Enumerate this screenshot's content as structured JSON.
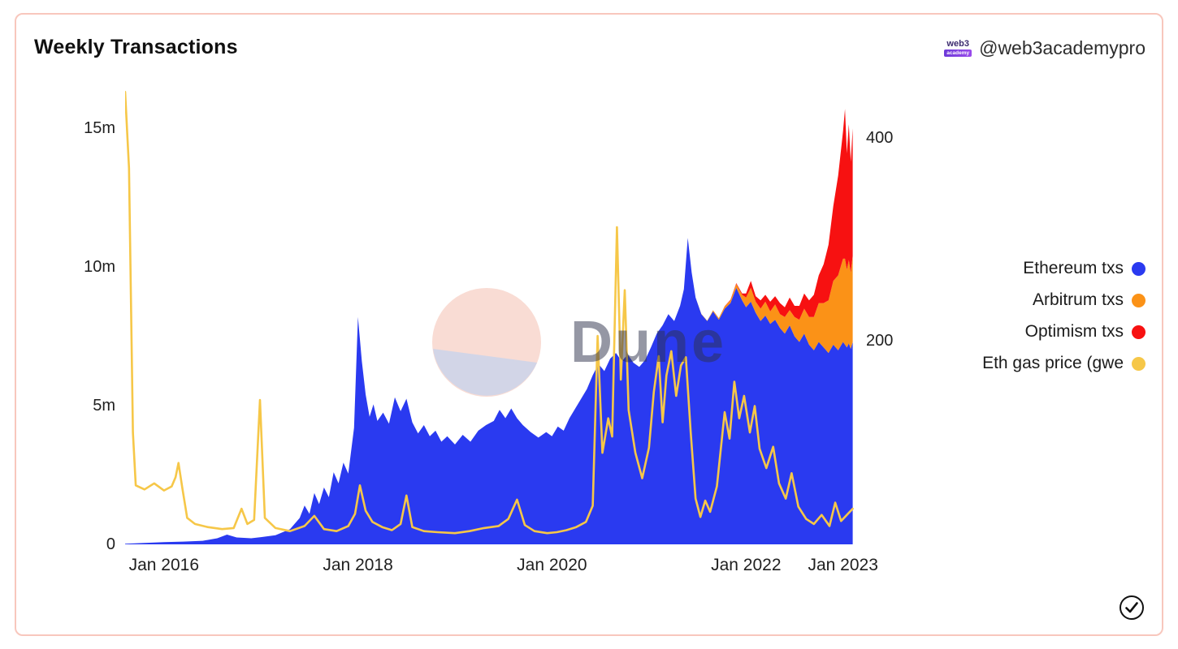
{
  "header": {
    "title": "Weekly Transactions",
    "handle": "@web3academypro",
    "logo_line1": "web3",
    "logo_line2": "academy"
  },
  "watermark": {
    "text": "Dune"
  },
  "legend": {
    "items": [
      {
        "label": "Ethereum txs",
        "color": "#2a3af0"
      },
      {
        "label": "Arbitrum txs",
        "color": "#fb9217"
      },
      {
        "label": "Optimism txs",
        "color": "#f71111"
      },
      {
        "label": "Eth gas price (gwe",
        "color": "#f6c748"
      }
    ]
  },
  "footer": {
    "check_icon": "checkmark"
  },
  "chart_data": {
    "type": "combo_stacked_area_line",
    "title": "Weekly Transactions",
    "grid": "off",
    "legend_position": "right",
    "axes": {
      "left": {
        "max": 16.5,
        "unit": "millions of transactions",
        "ticks": [
          {
            "value": 15,
            "label": "15m"
          },
          {
            "value": 10,
            "label": "10m"
          },
          {
            "value": 5,
            "label": "5m"
          },
          {
            "value": 0,
            "label": "0"
          }
        ]
      },
      "right": {
        "max": 450,
        "unit": "gwei",
        "ticks": [
          {
            "value": 400,
            "label": "400"
          },
          {
            "value": 200,
            "label": "200"
          }
        ]
      },
      "x": {
        "min": 2015.6,
        "max": 2023.12,
        "ticks": [
          {
            "value": 2016.0,
            "label": "Jan 2016"
          },
          {
            "value": 2018.0,
            "label": "Jan 2018"
          },
          {
            "value": 2020.0,
            "label": "Jan 2020"
          },
          {
            "value": 2022.0,
            "label": "Jan 2022"
          },
          {
            "value": 2023.0,
            "label": "Jan 2023"
          }
        ]
      }
    },
    "stack_columns": [
      "year",
      "ethereum_txs_m",
      "arbitrum_txs_m",
      "optimism_txs_m"
    ],
    "stack_series": [
      {
        "name": "Ethereum txs",
        "color": "#2a3af0",
        "axis": "left",
        "data_name": "ethereum-area"
      },
      {
        "name": "Arbitrum txs",
        "color": "#fb9217",
        "axis": "left",
        "data_name": "arbitrum-area"
      },
      {
        "name": "Optimism txs",
        "color": "#f71111",
        "axis": "left",
        "data_name": "optimism-area"
      }
    ],
    "stack_rows": [
      [
        2015.6,
        0.02,
        0,
        0
      ],
      [
        2015.8,
        0.05,
        0,
        0
      ],
      [
        2016.0,
        0.08,
        0,
        0
      ],
      [
        2016.2,
        0.1,
        0,
        0
      ],
      [
        2016.4,
        0.13,
        0,
        0
      ],
      [
        2016.55,
        0.22,
        0,
        0
      ],
      [
        2016.65,
        0.35,
        0,
        0
      ],
      [
        2016.75,
        0.25,
        0,
        0
      ],
      [
        2016.9,
        0.22,
        0,
        0
      ],
      [
        2017.0,
        0.26,
        0,
        0
      ],
      [
        2017.15,
        0.33,
        0,
        0
      ],
      [
        2017.3,
        0.55,
        0,
        0
      ],
      [
        2017.4,
        0.95,
        0,
        0
      ],
      [
        2017.45,
        1.4,
        0,
        0
      ],
      [
        2017.5,
        1.1,
        0,
        0
      ],
      [
        2017.55,
        1.85,
        0,
        0
      ],
      [
        2017.6,
        1.45,
        0,
        0
      ],
      [
        2017.65,
        2.05,
        0,
        0
      ],
      [
        2017.7,
        1.7,
        0,
        0
      ],
      [
        2017.75,
        2.6,
        0,
        0
      ],
      [
        2017.8,
        2.2,
        0,
        0
      ],
      [
        2017.85,
        2.95,
        0,
        0
      ],
      [
        2017.9,
        2.55,
        0,
        0
      ],
      [
        2017.96,
        4.2,
        0,
        0
      ],
      [
        2018.0,
        8.2,
        0,
        0
      ],
      [
        2018.04,
        6.6,
        0,
        0
      ],
      [
        2018.08,
        5.4,
        0,
        0
      ],
      [
        2018.12,
        4.6,
        0,
        0
      ],
      [
        2018.16,
        5.05,
        0,
        0
      ],
      [
        2018.2,
        4.45,
        0,
        0
      ],
      [
        2018.26,
        4.75,
        0,
        0
      ],
      [
        2018.32,
        4.35,
        0,
        0
      ],
      [
        2018.38,
        5.3,
        0,
        0
      ],
      [
        2018.44,
        4.8,
        0,
        0
      ],
      [
        2018.5,
        5.25,
        0,
        0
      ],
      [
        2018.56,
        4.4,
        0,
        0
      ],
      [
        2018.62,
        4.0,
        0,
        0
      ],
      [
        2018.68,
        4.3,
        0,
        0
      ],
      [
        2018.74,
        3.9,
        0,
        0
      ],
      [
        2018.8,
        4.1,
        0,
        0
      ],
      [
        2018.86,
        3.7,
        0,
        0
      ],
      [
        2018.92,
        3.9,
        0,
        0
      ],
      [
        2019.0,
        3.6,
        0,
        0
      ],
      [
        2019.08,
        3.95,
        0,
        0
      ],
      [
        2019.16,
        3.7,
        0,
        0
      ],
      [
        2019.24,
        4.1,
        0,
        0
      ],
      [
        2019.32,
        4.3,
        0,
        0
      ],
      [
        2019.4,
        4.45,
        0,
        0
      ],
      [
        2019.46,
        4.85,
        0,
        0
      ],
      [
        2019.52,
        4.55,
        0,
        0
      ],
      [
        2019.58,
        4.9,
        0,
        0
      ],
      [
        2019.64,
        4.55,
        0,
        0
      ],
      [
        2019.7,
        4.3,
        0,
        0
      ],
      [
        2019.78,
        4.05,
        0,
        0
      ],
      [
        2019.86,
        3.85,
        0,
        0
      ],
      [
        2019.94,
        4.05,
        0,
        0
      ],
      [
        2020.0,
        3.9,
        0,
        0
      ],
      [
        2020.06,
        4.25,
        0,
        0
      ],
      [
        2020.12,
        4.1,
        0,
        0
      ],
      [
        2020.18,
        4.55,
        0,
        0
      ],
      [
        2020.24,
        4.9,
        0,
        0
      ],
      [
        2020.3,
        5.25,
        0,
        0
      ],
      [
        2020.36,
        5.6,
        0,
        0
      ],
      [
        2020.42,
        6.1,
        0,
        0
      ],
      [
        2020.48,
        6.5,
        0,
        0
      ],
      [
        2020.54,
        6.25,
        0,
        0
      ],
      [
        2020.6,
        6.7,
        0,
        0
      ],
      [
        2020.66,
        6.9,
        0,
        0
      ],
      [
        2020.72,
        6.6,
        0,
        0
      ],
      [
        2020.78,
        6.85,
        0,
        0
      ],
      [
        2020.84,
        6.55,
        0,
        0
      ],
      [
        2020.9,
        6.4,
        0,
        0
      ],
      [
        2020.96,
        6.65,
        0,
        0
      ],
      [
        2021.02,
        7.1,
        0,
        0
      ],
      [
        2021.08,
        7.6,
        0,
        0
      ],
      [
        2021.14,
        7.9,
        0,
        0
      ],
      [
        2021.2,
        8.3,
        0,
        0
      ],
      [
        2021.26,
        8.05,
        0,
        0
      ],
      [
        2021.32,
        8.6,
        0,
        0
      ],
      [
        2021.36,
        9.2,
        0,
        0
      ],
      [
        2021.4,
        11.05,
        0,
        0
      ],
      [
        2021.44,
        9.8,
        0,
        0
      ],
      [
        2021.48,
        8.9,
        0,
        0
      ],
      [
        2021.54,
        8.3,
        0.01,
        0
      ],
      [
        2021.6,
        8.05,
        0.02,
        0
      ],
      [
        2021.66,
        8.4,
        0.04,
        0
      ],
      [
        2021.72,
        8.1,
        0.06,
        0
      ],
      [
        2021.78,
        8.5,
        0.08,
        0.01
      ],
      [
        2021.84,
        8.7,
        0.1,
        0.02
      ],
      [
        2021.9,
        9.25,
        0.14,
        0.03
      ],
      [
        2021.96,
        8.8,
        0.2,
        0.05
      ],
      [
        2022.0,
        8.55,
        0.35,
        0.15
      ],
      [
        2022.05,
        8.75,
        0.5,
        0.25
      ],
      [
        2022.1,
        8.35,
        0.4,
        0.2
      ],
      [
        2022.15,
        8.05,
        0.45,
        0.3
      ],
      [
        2022.2,
        8.25,
        0.5,
        0.25
      ],
      [
        2022.25,
        7.95,
        0.45,
        0.35
      ],
      [
        2022.3,
        8.1,
        0.55,
        0.3
      ],
      [
        2022.35,
        7.8,
        0.5,
        0.4
      ],
      [
        2022.4,
        7.6,
        0.6,
        0.35
      ],
      [
        2022.45,
        7.9,
        0.55,
        0.45
      ],
      [
        2022.5,
        7.5,
        0.7,
        0.4
      ],
      [
        2022.55,
        7.3,
        0.8,
        0.5
      ],
      [
        2022.6,
        7.6,
        0.9,
        0.55
      ],
      [
        2022.65,
        7.2,
        1.0,
        0.6
      ],
      [
        2022.7,
        7.0,
        1.2,
        0.8
      ],
      [
        2022.75,
        7.3,
        1.4,
        1.0
      ],
      [
        2022.8,
        7.1,
        1.6,
        1.4
      ],
      [
        2022.85,
        6.9,
        1.9,
        2.0
      ],
      [
        2022.9,
        7.2,
        2.3,
        2.7
      ],
      [
        2022.95,
        7.0,
        2.7,
        3.6
      ],
      [
        2023.0,
        7.3,
        3.0,
        4.6
      ],
      [
        2023.02,
        7.2,
        3.1,
        5.4
      ],
      [
        2023.04,
        7.1,
        2.8,
        4.2
      ],
      [
        2023.06,
        7.25,
        3.0,
        4.9
      ],
      [
        2023.08,
        7.05,
        2.75,
        4.0
      ],
      [
        2023.1,
        7.3,
        3.1,
        4.6
      ]
    ],
    "gas_line": {
      "name": "Eth gas price (gwe",
      "color": "#f6c748",
      "axis": "right",
      "columns": [
        "year",
        "gwei"
      ],
      "rows": [
        [
          2015.6,
          445
        ],
        [
          2015.64,
          370
        ],
        [
          2015.68,
          110
        ],
        [
          2015.71,
          58
        ],
        [
          2015.8,
          54
        ],
        [
          2015.9,
          60
        ],
        [
          2016.0,
          53
        ],
        [
          2016.08,
          57
        ],
        [
          2016.12,
          66
        ],
        [
          2016.15,
          80
        ],
        [
          2016.19,
          55
        ],
        [
          2016.24,
          26
        ],
        [
          2016.32,
          20
        ],
        [
          2016.45,
          17
        ],
        [
          2016.6,
          15
        ],
        [
          2016.72,
          16
        ],
        [
          2016.8,
          35
        ],
        [
          2016.86,
          20
        ],
        [
          2016.93,
          24
        ],
        [
          2016.99,
          142
        ],
        [
          2017.04,
          26
        ],
        [
          2017.15,
          16
        ],
        [
          2017.3,
          13
        ],
        [
          2017.45,
          18
        ],
        [
          2017.55,
          28
        ],
        [
          2017.65,
          15
        ],
        [
          2017.78,
          13
        ],
        [
          2017.9,
          18
        ],
        [
          2017.97,
          30
        ],
        [
          2018.02,
          58
        ],
        [
          2018.08,
          33
        ],
        [
          2018.15,
          22
        ],
        [
          2018.25,
          17
        ],
        [
          2018.35,
          14
        ],
        [
          2018.44,
          20
        ],
        [
          2018.5,
          48
        ],
        [
          2018.56,
          17
        ],
        [
          2018.68,
          13
        ],
        [
          2018.82,
          12
        ],
        [
          2019.0,
          11
        ],
        [
          2019.15,
          13
        ],
        [
          2019.3,
          16
        ],
        [
          2019.45,
          18
        ],
        [
          2019.55,
          25
        ],
        [
          2019.64,
          44
        ],
        [
          2019.72,
          19
        ],
        [
          2019.82,
          13
        ],
        [
          2019.95,
          11
        ],
        [
          2020.05,
          12
        ],
        [
          2020.15,
          14
        ],
        [
          2020.25,
          17
        ],
        [
          2020.35,
          22
        ],
        [
          2020.42,
          38
        ],
        [
          2020.47,
          205
        ],
        [
          2020.52,
          90
        ],
        [
          2020.58,
          124
        ],
        [
          2020.62,
          106
        ],
        [
          2020.67,
          312
        ],
        [
          2020.71,
          162
        ],
        [
          2020.75,
          250
        ],
        [
          2020.79,
          132
        ],
        [
          2020.86,
          90
        ],
        [
          2020.93,
          65
        ],
        [
          2021.0,
          95
        ],
        [
          2021.05,
          150
        ],
        [
          2021.1,
          185
        ],
        [
          2021.14,
          120
        ],
        [
          2021.18,
          166
        ],
        [
          2021.23,
          190
        ],
        [
          2021.28,
          146
        ],
        [
          2021.33,
          176
        ],
        [
          2021.38,
          184
        ],
        [
          2021.43,
          110
        ],
        [
          2021.48,
          45
        ],
        [
          2021.53,
          27
        ],
        [
          2021.58,
          43
        ],
        [
          2021.63,
          32
        ],
        [
          2021.7,
          57
        ],
        [
          2021.78,
          130
        ],
        [
          2021.83,
          104
        ],
        [
          2021.88,
          160
        ],
        [
          2021.93,
          124
        ],
        [
          2021.98,
          146
        ],
        [
          2022.04,
          110
        ],
        [
          2022.09,
          136
        ],
        [
          2022.14,
          94
        ],
        [
          2022.21,
          75
        ],
        [
          2022.28,
          96
        ],
        [
          2022.34,
          60
        ],
        [
          2022.41,
          45
        ],
        [
          2022.47,
          70
        ],
        [
          2022.54,
          37
        ],
        [
          2022.62,
          25
        ],
        [
          2022.7,
          20
        ],
        [
          2022.78,
          29
        ],
        [
          2022.86,
          18
        ],
        [
          2022.92,
          41
        ],
        [
          2022.98,
          23
        ],
        [
          2023.04,
          29
        ],
        [
          2023.1,
          35
        ]
      ]
    }
  }
}
